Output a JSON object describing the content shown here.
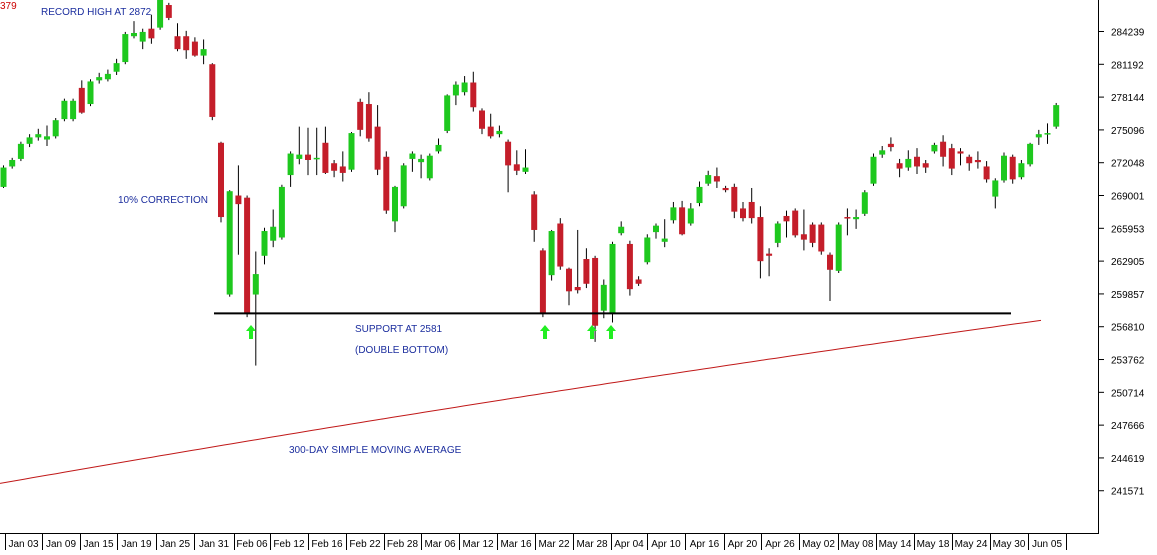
{
  "chart_data": {
    "type": "candlestick",
    "corner_label": "379",
    "colors": {
      "up": "#1ec81e",
      "down": "#c41e2a",
      "ma": "#c01818",
      "support": "#000000",
      "arrow": "#22ee22",
      "annotation": "#1c2e9e"
    },
    "y_ticks": [
      "284239",
      "281192",
      "278144",
      "275096",
      "272048",
      "269001",
      "265953",
      "262905",
      "259857",
      "256810",
      "253762",
      "250714",
      "247666",
      "244619",
      "241571"
    ],
    "ylim": [
      240000,
      287300
    ],
    "x_labels": [
      "Jan 03",
      "Jan 09",
      "Jan 15",
      "Jan 19",
      "Jan 25",
      "Jan 31",
      "Feb 06",
      "Feb 12",
      "Feb 16",
      "Feb 22",
      "Feb 28",
      "Mar 06",
      "Mar 12",
      "Mar 16",
      "Mar 22",
      "Mar 28",
      "Apr 04",
      "Apr 10",
      "Apr 16",
      "Apr 20",
      "Apr 26",
      "May 02",
      "May 08",
      "May 14",
      "May 18",
      "May 24",
      "May 30",
      "Jun 05"
    ],
    "candles": [
      {
        "o": 269800,
        "c": 271600,
        "h": 271800,
        "l": 269700
      },
      {
        "o": 271700,
        "c": 272300,
        "h": 272500,
        "l": 271500
      },
      {
        "o": 272400,
        "c": 273800,
        "h": 274000,
        "l": 272200
      },
      {
        "o": 273800,
        "c": 274400,
        "h": 274700,
        "l": 273500
      },
      {
        "o": 274400,
        "c": 274700,
        "h": 275200,
        "l": 274100
      },
      {
        "o": 274200,
        "c": 274500,
        "h": 275500,
        "l": 273600
      },
      {
        "o": 274500,
        "c": 276000,
        "h": 276200,
        "l": 274300
      },
      {
        "o": 276100,
        "c": 277800,
        "h": 278000,
        "l": 275900
      },
      {
        "o": 276100,
        "c": 277800,
        "h": 278000,
        "l": 275900
      },
      {
        "o": 279000,
        "c": 276700,
        "h": 279700,
        "l": 276600
      },
      {
        "o": 277500,
        "c": 279600,
        "h": 279800,
        "l": 277300
      },
      {
        "o": 279700,
        "c": 280000,
        "h": 280400,
        "l": 279400
      },
      {
        "o": 279800,
        "c": 280300,
        "h": 280700,
        "l": 279600
      },
      {
        "o": 280500,
        "c": 281300,
        "h": 281700,
        "l": 280200
      },
      {
        "o": 281400,
        "c": 284000,
        "h": 284200,
        "l": 281200
      },
      {
        "o": 283800,
        "c": 284100,
        "h": 285200,
        "l": 283600
      },
      {
        "o": 283300,
        "c": 284200,
        "h": 284500,
        "l": 282600
      },
      {
        "o": 284500,
        "c": 283600,
        "h": 285800,
        "l": 283100
      },
      {
        "o": 284600,
        "c": 287200,
        "h": 287300,
        "l": 284400
      },
      {
        "o": 286700,
        "c": 285500,
        "h": 286900,
        "l": 285300
      },
      {
        "o": 283800,
        "c": 282600,
        "h": 285000,
        "l": 282400
      },
      {
        "o": 283800,
        "c": 282500,
        "h": 284300,
        "l": 281700
      },
      {
        "o": 283300,
        "c": 282000,
        "h": 283700,
        "l": 281900
      },
      {
        "o": 282000,
        "c": 282600,
        "h": 283500,
        "l": 281200
      },
      {
        "o": 281200,
        "c": 276300,
        "h": 281300,
        "l": 276000
      },
      {
        "o": 273900,
        "c": 267000,
        "h": 274000,
        "l": 266500
      },
      {
        "o": 259800,
        "c": 269400,
        "h": 269500,
        "l": 259600
      },
      {
        "o": 269000,
        "c": 268200,
        "h": 271800,
        "l": 263500
      },
      {
        "o": 268800,
        "c": 258000,
        "h": 269000,
        "l": 257700
      },
      {
        "o": 259800,
        "c": 261700,
        "h": 263800,
        "l": 253200
      },
      {
        "o": 263400,
        "c": 265700,
        "h": 266000,
        "l": 262600
      },
      {
        "o": 264800,
        "c": 266100,
        "h": 267700,
        "l": 264200
      },
      {
        "o": 265100,
        "c": 269800,
        "h": 270000,
        "l": 264900
      },
      {
        "o": 270900,
        "c": 272900,
        "h": 273100,
        "l": 269800
      },
      {
        "o": 272400,
        "c": 272800,
        "h": 275400,
        "l": 271900
      },
      {
        "o": 272800,
        "c": 272300,
        "h": 275300,
        "l": 270900
      },
      {
        "o": 272500,
        "c": 272500,
        "h": 275300,
        "l": 270900
      },
      {
        "o": 273900,
        "c": 271100,
        "h": 275400,
        "l": 271000
      },
      {
        "o": 272000,
        "c": 271300,
        "h": 272300,
        "l": 270700
      },
      {
        "o": 271700,
        "c": 271100,
        "h": 273100,
        "l": 270300
      },
      {
        "o": 271400,
        "c": 274800,
        "h": 274900,
        "l": 271200
      },
      {
        "o": 277700,
        "c": 275100,
        "h": 278000,
        "l": 274500
      },
      {
        "o": 277500,
        "c": 274300,
        "h": 278600,
        "l": 274000
      },
      {
        "o": 275400,
        "c": 271400,
        "h": 277400,
        "l": 270900
      },
      {
        "o": 272600,
        "c": 267600,
        "h": 273100,
        "l": 267300
      },
      {
        "o": 266600,
        "c": 269800,
        "h": 269900,
        "l": 265600
      },
      {
        "o": 268000,
        "c": 271800,
        "h": 272000,
        "l": 267800
      },
      {
        "o": 272400,
        "c": 272900,
        "h": 273100,
        "l": 271200
      },
      {
        "o": 272100,
        "c": 272400,
        "h": 272800,
        "l": 270600
      },
      {
        "o": 270600,
        "c": 272700,
        "h": 272900,
        "l": 270400
      },
      {
        "o": 273100,
        "c": 273700,
        "h": 274300,
        "l": 272900
      },
      {
        "o": 275000,
        "c": 278300,
        "h": 278400,
        "l": 274800
      },
      {
        "o": 278300,
        "c": 279300,
        "h": 279600,
        "l": 277400
      },
      {
        "o": 278600,
        "c": 279500,
        "h": 280100,
        "l": 278300
      },
      {
        "o": 279500,
        "c": 277200,
        "h": 280500,
        "l": 276800
      },
      {
        "o": 276900,
        "c": 275200,
        "h": 277100,
        "l": 274700
      },
      {
        "o": 275400,
        "c": 274500,
        "h": 276600,
        "l": 274300
      },
      {
        "o": 274700,
        "c": 275000,
        "h": 275500,
        "l": 274400
      },
      {
        "o": 274000,
        "c": 271800,
        "h": 274200,
        "l": 269300
      },
      {
        "o": 271900,
        "c": 271300,
        "h": 273200,
        "l": 270900
      },
      {
        "o": 271200,
        "c": 271600,
        "h": 273300,
        "l": 271000
      },
      {
        "o": 269100,
        "c": 265800,
        "h": 269400,
        "l": 264700
      },
      {
        "o": 263900,
        "c": 258100,
        "h": 264100,
        "l": 257700
      },
      {
        "o": 261600,
        "c": 265700,
        "h": 265800,
        "l": 261100
      },
      {
        "o": 266400,
        "c": 262400,
        "h": 266900,
        "l": 262100
      },
      {
        "o": 262200,
        "c": 260100,
        "h": 262300,
        "l": 258800
      },
      {
        "o": 260500,
        "c": 260200,
        "h": 265800,
        "l": 259900
      },
      {
        "o": 263100,
        "c": 260800,
        "h": 264100,
        "l": 260400
      },
      {
        "o": 263200,
        "c": 256900,
        "h": 263400,
        "l": 255400
      },
      {
        "o": 258300,
        "c": 260700,
        "h": 261200,
        "l": 257600
      },
      {
        "o": 258100,
        "c": 264500,
        "h": 264700,
        "l": 257200
      },
      {
        "o": 265500,
        "c": 266100,
        "h": 266600,
        "l": 265300
      },
      {
        "o": 264500,
        "c": 260300,
        "h": 264800,
        "l": 259700
      },
      {
        "o": 261200,
        "c": 260800,
        "h": 261500,
        "l": 260600
      },
      {
        "o": 262800,
        "c": 265100,
        "h": 265400,
        "l": 262600
      },
      {
        "o": 265600,
        "c": 266200,
        "h": 266400,
        "l": 265000
      },
      {
        "o": 264700,
        "c": 265000,
        "h": 266800,
        "l": 264200
      },
      {
        "o": 266700,
        "c": 267900,
        "h": 268400,
        "l": 266400
      },
      {
        "o": 267900,
        "c": 265400,
        "h": 268500,
        "l": 265300
      },
      {
        "o": 266400,
        "c": 267800,
        "h": 268300,
        "l": 266200
      },
      {
        "o": 268300,
        "c": 269800,
        "h": 270300,
        "l": 268000
      },
      {
        "o": 270100,
        "c": 270900,
        "h": 271300,
        "l": 269900
      },
      {
        "o": 270800,
        "c": 270300,
        "h": 271600,
        "l": 269700
      },
      {
        "o": 269700,
        "c": 269500,
        "h": 269900,
        "l": 269300
      },
      {
        "o": 269800,
        "c": 267500,
        "h": 270100,
        "l": 266900
      },
      {
        "o": 267800,
        "c": 266900,
        "h": 268400,
        "l": 266600
      },
      {
        "o": 268400,
        "c": 266900,
        "h": 269700,
        "l": 266400
      },
      {
        "o": 267000,
        "c": 262900,
        "h": 268000,
        "l": 261300
      },
      {
        "o": 263600,
        "c": 263400,
        "h": 264100,
        "l": 261500
      },
      {
        "o": 264600,
        "c": 266400,
        "h": 266600,
        "l": 264200
      },
      {
        "o": 267100,
        "c": 266600,
        "h": 267600,
        "l": 265100
      },
      {
        "o": 267600,
        "c": 265300,
        "h": 267800,
        "l": 265100
      },
      {
        "o": 265400,
        "c": 264900,
        "h": 267700,
        "l": 263900
      },
      {
        "o": 266300,
        "c": 264600,
        "h": 266500,
        "l": 264200
      },
      {
        "o": 266300,
        "c": 263800,
        "h": 266500,
        "l": 263500
      },
      {
        "o": 263500,
        "c": 262100,
        "h": 263700,
        "l": 259200
      },
      {
        "o": 262000,
        "c": 266300,
        "h": 266500,
        "l": 261800
      },
      {
        "o": 267000,
        "c": 266900,
        "h": 267800,
        "l": 265300
      },
      {
        "o": 266800,
        "c": 267000,
        "h": 267700,
        "l": 265900
      },
      {
        "o": 267300,
        "c": 269300,
        "h": 269500,
        "l": 267100
      },
      {
        "o": 270100,
        "c": 272600,
        "h": 272900,
        "l": 269900
      },
      {
        "o": 272800,
        "c": 273200,
        "h": 273600,
        "l": 272500
      },
      {
        "o": 273800,
        "c": 273500,
        "h": 274400,
        "l": 273100
      },
      {
        "o": 272000,
        "c": 271500,
        "h": 272400,
        "l": 270700
      },
      {
        "o": 271600,
        "c": 272400,
        "h": 273200,
        "l": 271300
      },
      {
        "o": 272600,
        "c": 271700,
        "h": 273400,
        "l": 271000
      },
      {
        "o": 272000,
        "c": 271600,
        "h": 272300,
        "l": 271100
      },
      {
        "o": 273100,
        "c": 273700,
        "h": 273900,
        "l": 272900
      },
      {
        "o": 274000,
        "c": 272600,
        "h": 274600,
        "l": 271700
      },
      {
        "o": 273400,
        "c": 271500,
        "h": 273800,
        "l": 270900
      },
      {
        "o": 273100,
        "c": 272900,
        "h": 273400,
        "l": 271800
      },
      {
        "o": 272600,
        "c": 272000,
        "h": 272800,
        "l": 271300
      },
      {
        "o": 272300,
        "c": 272100,
        "h": 273100,
        "l": 271500
      },
      {
        "o": 271700,
        "c": 270500,
        "h": 272200,
        "l": 270200
      },
      {
        "o": 268900,
        "c": 270400,
        "h": 270600,
        "l": 267800
      },
      {
        "o": 270400,
        "c": 272700,
        "h": 273000,
        "l": 270200
      },
      {
        "o": 272600,
        "c": 270500,
        "h": 272800,
        "l": 270100
      },
      {
        "o": 270700,
        "c": 272000,
        "h": 272300,
        "l": 270500
      },
      {
        "o": 271900,
        "c": 273800,
        "h": 273900,
        "l": 271700
      },
      {
        "o": 274400,
        "c": 274700,
        "h": 275100,
        "l": 273700
      },
      {
        "o": 274700,
        "c": 274800,
        "h": 275700,
        "l": 273800
      },
      {
        "o": 275400,
        "c": 277400,
        "h": 277600,
        "l": 275200
      }
    ],
    "ma": {
      "start": 242250,
      "end": 257400
    },
    "support_level": 258050,
    "annotations": {
      "record_high": "RECORD HIGH AT 2872",
      "correction": "10% CORRECTION",
      "support": "SUPPORT AT 2581",
      "double_bottom": "(DOUBLE BOTTOM)",
      "moving_average": "300-DAY SIMPLE MOVING AVERAGE"
    }
  }
}
